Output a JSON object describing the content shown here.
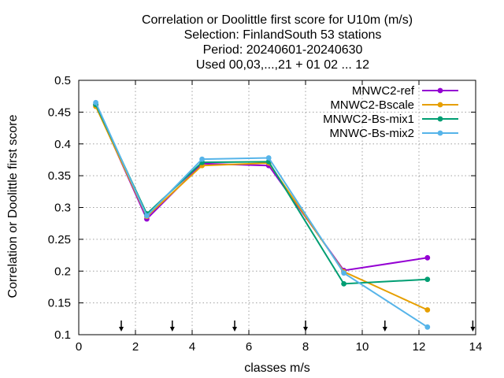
{
  "chart_data": {
    "type": "line",
    "title_lines": [
      "Correlation or Doolittle first score  for U10m (m/s)",
      "Selection: FinlandSouth     53 stations",
      "Period: 20240601-20240630",
      "Used 00,03,...,21 + 01 02 ... 12"
    ],
    "xlabel": "classes m/s",
    "ylabel": "Correlation or Doolittle first score",
    "xlim": [
      0,
      14
    ],
    "ylim": [
      0.1,
      0.5
    ],
    "xticks": [
      0,
      2,
      4,
      6,
      8,
      10,
      12,
      14
    ],
    "yticks": [
      0.1,
      0.15,
      0.2,
      0.25,
      0.3,
      0.35,
      0.4,
      0.45,
      0.5
    ],
    "xtick_labels": [
      "0",
      "2",
      "4",
      "6",
      "8",
      "10",
      "12",
      "14"
    ],
    "ytick_labels": [
      "0.1",
      "0.15",
      "0.2",
      "0.25",
      "0.3",
      "0.35",
      "0.4",
      "0.45",
      "0.5"
    ],
    "grid": true,
    "legend_position": "top-right",
    "class_boundary_arrows": [
      1.5,
      3.3,
      5.5,
      8.0,
      10.8,
      13.9
    ],
    "x": [
      0.6,
      2.4,
      4.35,
      6.7,
      9.35,
      12.3
    ],
    "series": [
      {
        "name": "MNWC2-ref",
        "color": "#9400d3",
        "marker": "circle",
        "values": [
          0.461,
          0.282,
          0.369,
          0.366,
          0.201,
          0.221
        ]
      },
      {
        "name": "MNWC2-Bscale",
        "color": "#e69f00",
        "marker": "circle",
        "values": [
          0.459,
          0.286,
          0.366,
          0.37,
          0.199,
          0.139
        ]
      },
      {
        "name": "MNWC2-Bs-mix1",
        "color": "#009e73",
        "marker": "circle",
        "values": [
          0.462,
          0.29,
          0.371,
          0.372,
          0.18,
          0.187
        ]
      },
      {
        "name": "MNWC-Bs-mix2",
        "color": "#56b4e9",
        "marker": "circle",
        "values": [
          0.465,
          0.287,
          0.376,
          0.378,
          0.197,
          0.112
        ]
      }
    ]
  }
}
